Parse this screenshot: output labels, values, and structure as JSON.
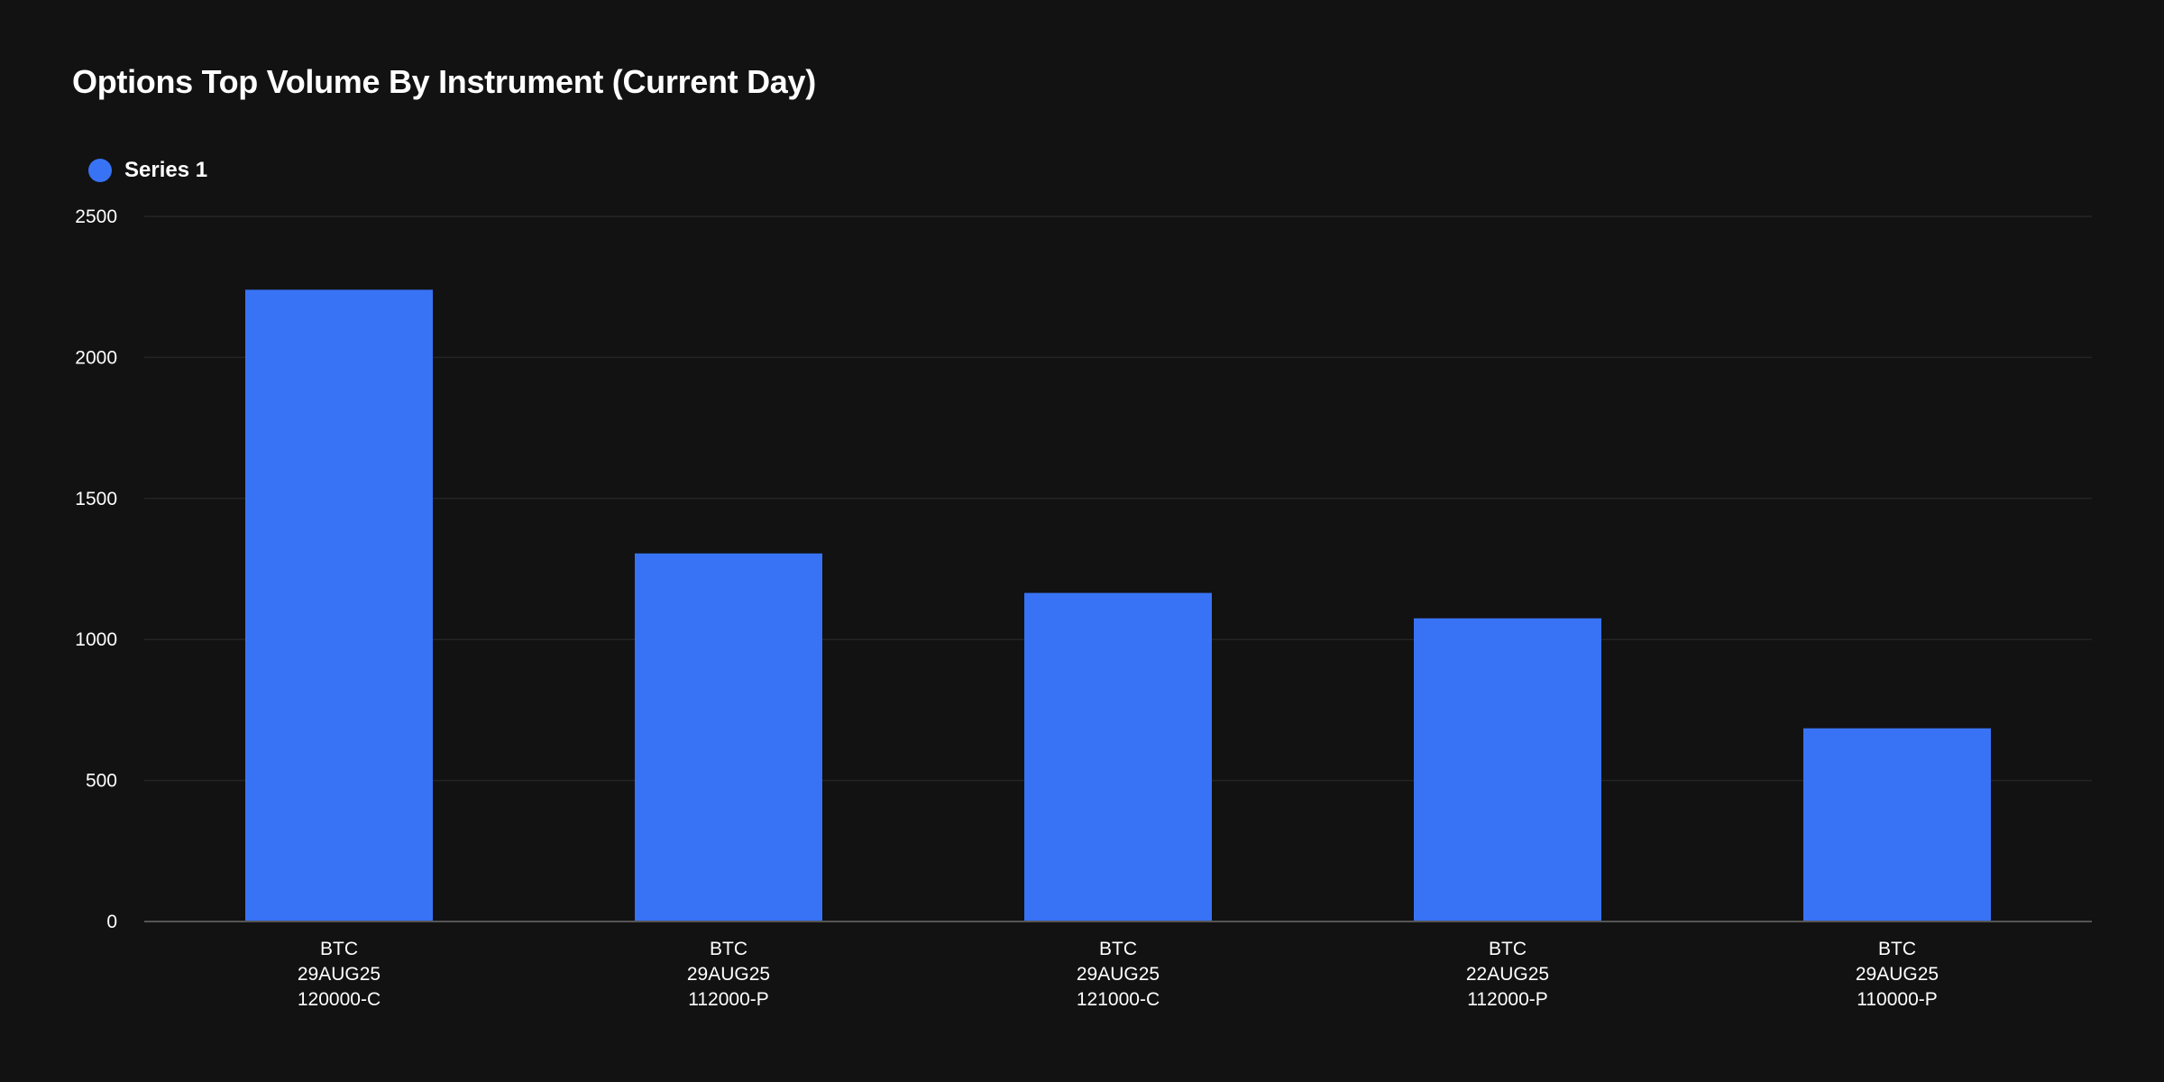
{
  "chart_data": {
    "type": "bar",
    "title": "Options Top Volume By Instrument (Current Day)",
    "xlabel": "",
    "ylabel": "",
    "categories": [
      [
        "BTC",
        "29AUG25",
        "120000-C"
      ],
      [
        "BTC",
        "29AUG25",
        "112000-P"
      ],
      [
        "BTC",
        "29AUG25",
        "121000-C"
      ],
      [
        "BTC",
        "22AUG25",
        "112000-P"
      ],
      [
        "BTC",
        "29AUG25",
        "110000-P"
      ]
    ],
    "series": [
      {
        "name": "Series 1",
        "color": "#3873f5",
        "values": [
          2240,
          1305,
          1165,
          1075,
          685
        ]
      }
    ],
    "ylim": [
      0,
      2500
    ],
    "yticks": [
      0,
      500,
      1000,
      1500,
      2000,
      2500
    ],
    "grid": true,
    "legend_position": "top-left"
  },
  "colors": {
    "background": "#121212",
    "gridline": "#242424",
    "axis": "#555555",
    "text": "#ffffff"
  }
}
